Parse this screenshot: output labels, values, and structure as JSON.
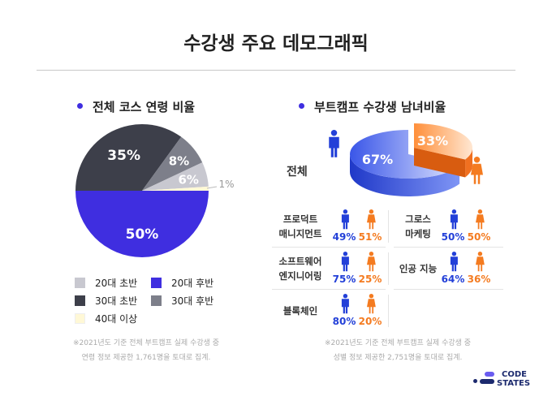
{
  "title": "수강생 주요 데모그래픽",
  "colors": {
    "accent": "#3f2ee0",
    "male": "#2340d8",
    "female": "#f47b20"
  },
  "chart_data": [
    {
      "type": "pie",
      "title": "전체 코스 연령 비율",
      "slices": [
        {
          "label": "20대 후반",
          "value": 50,
          "display": "50%",
          "color": "#3f2ee0"
        },
        {
          "label": "30대 초반",
          "value": 35,
          "display": "35%",
          "color": "#3d3f4a"
        },
        {
          "label": "30대 후반",
          "value": 8,
          "display": "8%",
          "color": "#7d7f8a"
        },
        {
          "label": "20대 초반",
          "value": 6,
          "display": "6%",
          "color": "#c8c8d0"
        },
        {
          "label": "40대 이상",
          "value": 1,
          "display": "1%",
          "color": "#fff8d6"
        }
      ],
      "legend": [
        "20대 초반",
        "20대 후반",
        "30대 초반",
        "30대 후반",
        "40대 이상"
      ],
      "note": [
        "※2021년도 기준 전체 부트캠프 실제 수강생 중",
        "연령 정보 제공한 1,761명을 토대로 집계."
      ]
    },
    {
      "type": "pie",
      "title": "부트캠프 수강생 남녀비율",
      "overall": {
        "label": "전체",
        "male": 67,
        "female": 33,
        "male_display": "67%",
        "female_display": "33%"
      },
      "courses": [
        {
          "name": [
            "프로덕트",
            "매니지먼트"
          ],
          "male": "49%",
          "female": "51%"
        },
        {
          "name": [
            "그로스",
            "마케팅"
          ],
          "male": "50%",
          "female": "50%"
        },
        {
          "name": [
            "소프트웨어",
            "엔지니어링"
          ],
          "male": "75%",
          "female": "25%"
        },
        {
          "name": [
            "인공 지능",
            ""
          ],
          "male": "64%",
          "female": "36%"
        },
        {
          "name": [
            "블록체인",
            ""
          ],
          "male": "80%",
          "female": "20%"
        }
      ],
      "note": [
        "※2021년도 기준 전체 부트캠프 실제 수강생 중",
        "성별 정보 제공한 2,751명을 토대로 집계."
      ]
    }
  ],
  "logo": [
    "CODE",
    "STATES"
  ]
}
